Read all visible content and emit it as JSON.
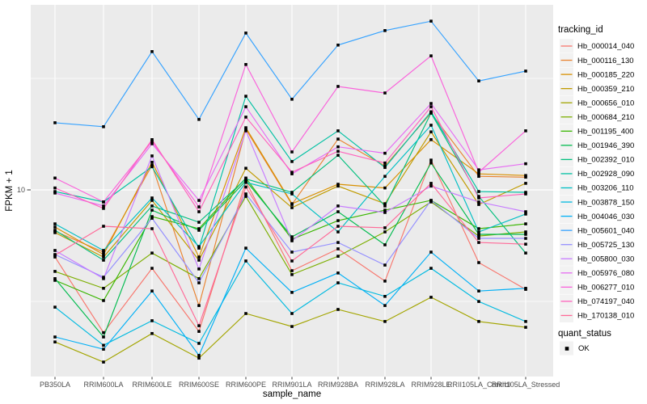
{
  "figure": {
    "background": "#FFFFFF",
    "panel_background": "#EBEBEB",
    "grid_color": "#FFFFFF",
    "axis_text_color": "#4D4D4D",
    "tick_mark_color": "#333333",
    "point_color": "#000000"
  },
  "chart_data": {
    "type": "line",
    "title": "",
    "xlabel": "sample_name",
    "ylabel": "FPKM + 1",
    "y_scale": "log10",
    "y_ticks": [
      {
        "label": "10",
        "value": 10
      }
    ],
    "y_minor_ticks": [
      3.162,
      31.62
    ],
    "grid": true,
    "legend_position": "right",
    "categories": [
      "PB350LA",
      "RRIM600LA",
      "RRIM600LE",
      "RRIM600SE",
      "RRIM600PE",
      "RRIM901LA",
      "RRIM928BA",
      "RRIM928LA",
      "RRIM928LE",
      "RRII105LA_Control",
      "RRII105LA_Stressed"
    ],
    "legend": {
      "title": "tracking_id"
    },
    "quant_legend": {
      "title": "quant_status",
      "items": [
        {
          "label": "OK",
          "shape": "filled-square"
        }
      ]
    },
    "series": [
      {
        "tracking_id": "Hb_000014_040",
        "color": "#F8766D",
        "values": [
          5.0,
          2.29,
          4.45,
          2.32,
          10.9,
          4.34,
          5.44,
          3.9,
          13.6,
          4.72,
          3.58
        ]
      },
      {
        "tracking_id": "Hb_000116_130",
        "color": "#EA8331",
        "values": [
          6.53,
          5.26,
          12.9,
          3.03,
          18.7,
          8.6,
          16.9,
          12.8,
          22.1,
          11.5,
          11.4
        ]
      },
      {
        "tracking_id": "Hb_000185_220",
        "color": "#D89000",
        "values": [
          6.81,
          5.13,
          13.3,
          5.0,
          19.0,
          8.67,
          10.6,
          10.2,
          16.8,
          11.8,
          11.6
        ]
      },
      {
        "tracking_id": "Hb_000359_210",
        "color": "#C09B00",
        "values": [
          6.43,
          5.0,
          8.97,
          4.84,
          12.5,
          8.32,
          10.4,
          8.67,
          18.2,
          8.6,
          10.7
        ]
      },
      {
        "tracking_id": "Hb_000656_010",
        "color": "#A3A500",
        "values": [
          2.08,
          1.69,
          2.27,
          1.76,
          2.79,
          2.44,
          2.91,
          2.57,
          3.3,
          2.57,
          2.42
        ]
      },
      {
        "tracking_id": "Hb_000684_210",
        "color": "#7CAE00",
        "values": [
          4.31,
          3.62,
          5.21,
          4.0,
          9.35,
          4.17,
          5.04,
          6.48,
          8.83,
          6.21,
          6.48
        ]
      },
      {
        "tracking_id": "Hb_001195_400",
        "color": "#39B600",
        "values": [
          3.93,
          3.19,
          7.59,
          6.7,
          11.3,
          6.01,
          7.28,
          8.11,
          8.97,
          6.7,
          7.04
        ]
      },
      {
        "tracking_id": "Hb_001946_390",
        "color": "#00BB4E",
        "values": [
          4.0,
          2.19,
          8.11,
          6.59,
          11.0,
          6.16,
          7.98,
          5.67,
          13.2,
          6.32,
          6.32
        ]
      },
      {
        "tracking_id": "Hb_002392_010",
        "color": "#00BF7D",
        "values": [
          6.59,
          4.84,
          8.47,
          7.16,
          11.2,
          9.75,
          14.3,
          8.47,
          22.1,
          9.35,
          5.21
        ]
      },
      {
        "tracking_id": "Hb_002928_090",
        "color": "#00C1A3",
        "values": [
          9.83,
          8.83,
          12.7,
          5.48,
          26.3,
          13.4,
          18.4,
          12.6,
          22.4,
          9.83,
          9.75
        ]
      },
      {
        "tracking_id": "Hb_003206_110",
        "color": "#00BFC4",
        "values": [
          7.04,
          5.35,
          9.2,
          5.57,
          10.8,
          9.59,
          6.48,
          11.5,
          19.5,
          6.48,
          7.79
        ]
      },
      {
        "tracking_id": "Hb_003878_150",
        "color": "#00BAE0",
        "values": [
          2.98,
          2.01,
          2.59,
          2.05,
          4.8,
          2.79,
          3.83,
          3.33,
          4.45,
          3.16,
          2.57
        ]
      },
      {
        "tracking_id": "Hb_004046_030",
        "color": "#00B0F6",
        "values": [
          2.19,
          1.93,
          3.52,
          1.81,
          5.48,
          3.47,
          4.24,
          3.03,
          5.26,
          3.52,
          3.62
        ]
      },
      {
        "tracking_id": "Hb_005601_040",
        "color": "#35A2FF",
        "values": [
          20.0,
          19.2,
          41.7,
          20.7,
          50.5,
          25.5,
          44.6,
          51.8,
          57.1,
          30.8,
          34.1
        ]
      },
      {
        "tracking_id": "Hb_005725_130",
        "color": "#9590FF",
        "values": [
          5.13,
          4.06,
          7.46,
          3.83,
          9.59,
          5.26,
          5.81,
          4.6,
          8.97,
          6.06,
          6.06
        ]
      },
      {
        "tracking_id": "Hb_005800_030",
        "color": "#C77CFF",
        "values": [
          5.35,
          4.0,
          14.2,
          4.42,
          18.4,
          5.91,
          8.47,
          7.92,
          10.4,
          8.83,
          7.98
        ]
      },
      {
        "tracking_id": "Hb_005976_080",
        "color": "#E76BF3",
        "values": [
          9.68,
          8.47,
          16.1,
          8.97,
          23.6,
          11.8,
          15.6,
          14.6,
          24.4,
          12.3,
          13.1
        ]
      },
      {
        "tracking_id": "Hb_006277_010",
        "color": "#FA62DB",
        "values": [
          11.3,
          8.83,
          16.5,
          8.39,
          36.5,
          14.8,
          29.1,
          27.2,
          39.9,
          12.0,
          18.4
        ]
      },
      {
        "tracking_id": "Hb_074197_040",
        "color": "#FF62BC",
        "values": [
          10.2,
          8.26,
          16.8,
          7.98,
          21.2,
          12.0,
          14.9,
          13.2,
          23.6,
          9.2,
          9.59
        ]
      },
      {
        "tracking_id": "Hb_170138_010",
        "color": "#FF6A98",
        "values": [
          5.09,
          6.87,
          6.7,
          2.46,
          10.3,
          4.8,
          6.87,
          6.76,
          10.7,
          5.81,
          5.71
        ]
      }
    ]
  }
}
